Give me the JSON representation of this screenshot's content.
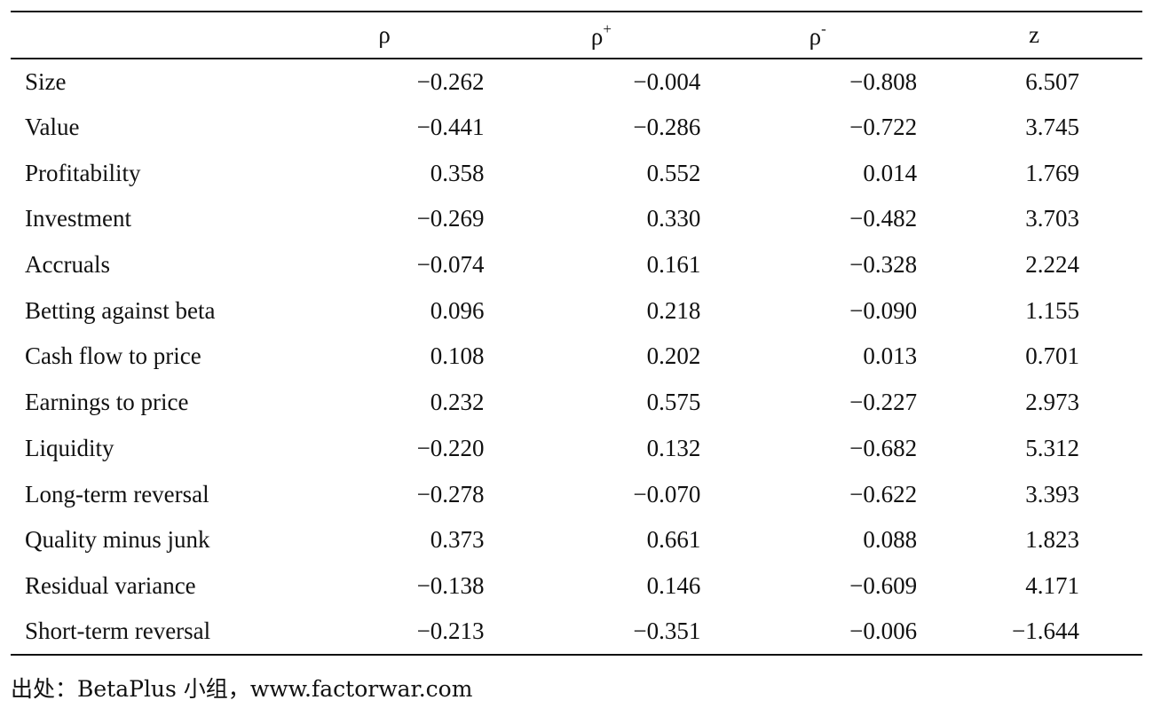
{
  "table": {
    "headers": [
      {
        "base": "",
        "sup": ""
      },
      {
        "base": "ρ",
        "sup": ""
      },
      {
        "base": "ρ",
        "sup": "+"
      },
      {
        "base": "ρ",
        "sup": "-"
      },
      {
        "base": "z",
        "sup": ""
      }
    ],
    "rows": [
      {
        "label": "Size",
        "values": [
          "−0.262",
          "−0.004",
          "−0.808",
          "6.507"
        ]
      },
      {
        "label": "Value",
        "values": [
          "−0.441",
          "−0.286",
          "−0.722",
          "3.745"
        ]
      },
      {
        "label": "Profitability",
        "values": [
          "0.358",
          "0.552",
          "0.014",
          "1.769"
        ]
      },
      {
        "label": "Investment",
        "values": [
          "−0.269",
          "0.330",
          "−0.482",
          "3.703"
        ]
      },
      {
        "label": "Accruals",
        "values": [
          "−0.074",
          "0.161",
          "−0.328",
          "2.224"
        ]
      },
      {
        "label": "Betting against beta",
        "values": [
          "0.096",
          "0.218",
          "−0.090",
          "1.155"
        ]
      },
      {
        "label": "Cash flow to price",
        "values": [
          "0.108",
          "0.202",
          "0.013",
          "0.701"
        ]
      },
      {
        "label": "Earnings to price",
        "values": [
          "0.232",
          "0.575",
          "−0.227",
          "2.973"
        ]
      },
      {
        "label": "Liquidity",
        "values": [
          "−0.220",
          "0.132",
          "−0.682",
          "5.312"
        ]
      },
      {
        "label": "Long-term reversal",
        "values": [
          "−0.278",
          "−0.070",
          "−0.622",
          "3.393"
        ]
      },
      {
        "label": "Quality minus junk",
        "values": [
          "0.373",
          "0.661",
          "0.088",
          "1.823"
        ]
      },
      {
        "label": "Residual variance",
        "values": [
          "−0.138",
          "0.146",
          "−0.609",
          "4.171"
        ]
      },
      {
        "label": "Short-term reversal",
        "values": [
          "−0.213",
          "−0.351",
          "−0.006",
          "−1.644"
        ]
      }
    ]
  },
  "source": "出处：BetaPlus 小组，www.factorwar.com"
}
